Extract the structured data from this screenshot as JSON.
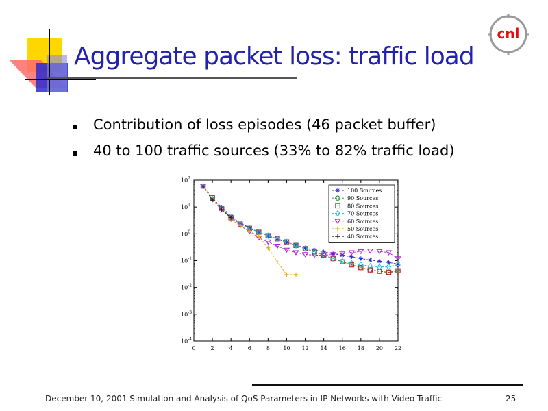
{
  "slide": {
    "title": "Aggregate packet loss: traffic load",
    "bullets": [
      "Contribution of loss episodes (46 packet buffer)",
      "40 to 100 traffic sources (33% to 82% traffic load)"
    ],
    "footer": "December 10, 2001 Simulation and Analysis of QoS Parameters in IP Networks with Video Traffic",
    "page_number": "25",
    "logo_text": "cnl"
  },
  "chart_data": {
    "type": "line",
    "title": "",
    "xlabel": "",
    "ylabel": "",
    "xlim": [
      0,
      22
    ],
    "ylim_exponents": [
      -4,
      2
    ],
    "y_scale": "log",
    "x_ticks": [
      "0",
      "2",
      "4",
      "6",
      "8",
      "10",
      "12",
      "14",
      "16",
      "18",
      "20",
      "22"
    ],
    "y_tick_labels": [
      {
        "base": "10",
        "exp": "2"
      },
      {
        "base": "10",
        "exp": "1"
      },
      {
        "base": "10",
        "exp": "0"
      },
      {
        "base": "10",
        "exp": "-1"
      },
      {
        "base": "10",
        "exp": "-2"
      },
      {
        "base": "10",
        "exp": "-3"
      },
      {
        "base": "10",
        "exp": "-4"
      }
    ],
    "legend_position": "top-right",
    "grid": false,
    "series": [
      {
        "name": "100 Sources",
        "color": "#2b2bd0",
        "marker": "star",
        "x": [
          1,
          2,
          3,
          4,
          5,
          6,
          7,
          8,
          9,
          10,
          11,
          12,
          13,
          14,
          15,
          16,
          17,
          18,
          19,
          20,
          21,
          22
        ],
        "y": [
          60,
          20,
          10,
          4.5,
          2.5,
          1.7,
          1.15,
          0.85,
          0.62,
          0.48,
          0.38,
          0.3,
          0.25,
          0.21,
          0.18,
          0.16,
          0.14,
          0.12,
          0.105,
          0.095,
          0.085,
          0.075
        ]
      },
      {
        "name": "90 Sources",
        "color": "#1a8a1a",
        "marker": "circle",
        "x": [
          1,
          2,
          3,
          4,
          5,
          6,
          7,
          8,
          9,
          10,
          11,
          12,
          13,
          14,
          15,
          16,
          17,
          18,
          19,
          20,
          21,
          22
        ],
        "y": [
          60,
          20,
          9,
          4,
          2.3,
          1.6,
          1.15,
          0.85,
          0.65,
          0.5,
          0.37,
          0.28,
          0.21,
          0.16,
          0.12,
          0.09,
          0.07,
          0.055,
          0.045,
          0.04,
          0.036,
          0.04
        ]
      },
      {
        "name": "80 Sources",
        "color": "#cc2222",
        "marker": "square",
        "x": [
          1,
          2,
          3,
          4,
          5,
          6,
          7,
          8,
          9,
          10,
          11,
          12,
          13,
          14,
          15,
          16,
          17,
          18,
          19,
          20,
          21,
          22
        ],
        "y": [
          60,
          22,
          9,
          4,
          2.3,
          1.6,
          1.15,
          0.85,
          0.65,
          0.5,
          0.37,
          0.28,
          0.21,
          0.16,
          0.12,
          0.09,
          0.07,
          0.055,
          0.045,
          0.04,
          0.037,
          0.042
        ]
      },
      {
        "name": "70 Sources",
        "color": "#22bbcc",
        "marker": "diamond",
        "x": [
          1,
          2,
          3,
          4,
          5,
          6,
          7,
          8,
          9,
          10,
          11,
          12,
          13,
          14,
          15,
          16,
          17,
          18,
          19,
          20,
          21,
          22
        ],
        "y": [
          60,
          20,
          9,
          4,
          2.3,
          1.6,
          1.15,
          0.85,
          0.65,
          0.5,
          0.37,
          0.28,
          0.21,
          0.16,
          0.12,
          0.095,
          0.08,
          0.07,
          0.062,
          0.058,
          0.06,
          0.068
        ]
      },
      {
        "name": "60 Sources",
        "color": "#aa22cc",
        "marker": "triangle-down",
        "x": [
          1,
          2,
          3,
          4,
          5,
          6,
          7,
          8,
          9,
          10,
          11,
          12,
          13,
          14,
          15,
          16,
          17,
          18,
          19,
          20,
          21,
          22
        ],
        "y": [
          60,
          20,
          8,
          3.5,
          2,
          1.2,
          0.7,
          0.5,
          0.35,
          0.25,
          0.2,
          0.17,
          0.16,
          0.16,
          0.17,
          0.18,
          0.2,
          0.22,
          0.23,
          0.22,
          0.2,
          0.12
        ]
      },
      {
        "name": "50 Sources",
        "color": "#ddaa00",
        "marker": "plus",
        "x": [
          1,
          2,
          3,
          4,
          5,
          6,
          7,
          8,
          9,
          10,
          11
        ],
        "y": [
          60,
          20,
          8,
          3.5,
          2,
          1.3,
          0.8,
          0.3,
          0.09,
          0.03,
          0.03
        ]
      },
      {
        "name": "40 Sources",
        "color": "#222222",
        "marker": "plus",
        "x": [
          1,
          2,
          3,
          4
        ],
        "y": [
          60,
          18,
          8,
          4
        ]
      }
    ]
  }
}
